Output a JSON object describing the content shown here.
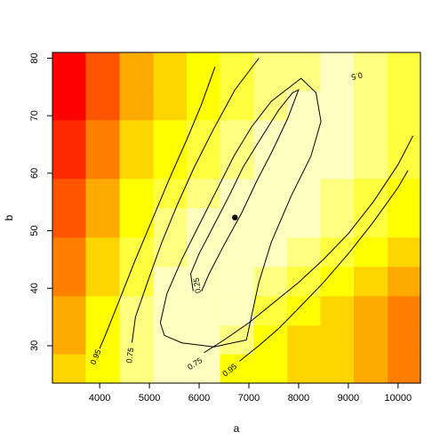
{
  "chart_data": {
    "type": "heatmap",
    "title": "",
    "xlabel": "a",
    "ylabel": "b",
    "xlim": [
      3050,
      10450
    ],
    "ylim": [
      23.5,
      81
    ],
    "x_ticks": [
      4000,
      5000,
      6000,
      7000,
      8000,
      9000,
      10000
    ],
    "y_ticks": [
      30,
      40,
      50,
      60,
      70,
      80
    ],
    "x_tick_labels": [
      "4000",
      "5000",
      "6000",
      "7000",
      "8000",
      "9000",
      "10000"
    ],
    "y_tick_labels": [
      "30",
      "40",
      "50",
      "60",
      "70",
      "80"
    ],
    "palette": [
      "#FF0000",
      "#FF2A00",
      "#FF5500",
      "#FF8000",
      "#FFAA00",
      "#FFD500",
      "#FFFF00",
      "#FFFF40",
      "#FFFF80",
      "#FFFFBF"
    ],
    "grid": {
      "x_edges": [
        3050,
        3720,
        4400,
        5080,
        5750,
        6420,
        7100,
        7770,
        8440,
        9110,
        9790,
        10450
      ],
      "y_edges": [
        23.5,
        28.6,
        33.6,
        38.7,
        43.8,
        48.9,
        54.0,
        59.1,
        64.2,
        69.3,
        74.4,
        81.0
      ],
      "z": [
        [
          5,
          6,
          8,
          9,
          9,
          6,
          6,
          5,
          5,
          4,
          3
        ],
        [
          4,
          6,
          8,
          9,
          9,
          8,
          6,
          5,
          5,
          4,
          3
        ],
        [
          4,
          6,
          8,
          9,
          9,
          9,
          7,
          6,
          5,
          4,
          3
        ],
        [
          3,
          5,
          7,
          9,
          9,
          9,
          8,
          7,
          6,
          5,
          4
        ],
        [
          3,
          5,
          7,
          8,
          9,
          9,
          9,
          8,
          7,
          6,
          5
        ],
        [
          2,
          4,
          6,
          8,
          9,
          9,
          9,
          9,
          8,
          7,
          6
        ],
        [
          2,
          4,
          6,
          7,
          8,
          9,
          9,
          9,
          8,
          7,
          6
        ],
        [
          1,
          3,
          5,
          6,
          7,
          8,
          9,
          9,
          9,
          8,
          7
        ],
        [
          1,
          3,
          5,
          6,
          7,
          8,
          9,
          9,
          9,
          8,
          7
        ],
        [
          0,
          2,
          4,
          5,
          6,
          7,
          8,
          9,
          9,
          8,
          7
        ],
        [
          0,
          2,
          4,
          5,
          6,
          7,
          8,
          8,
          9,
          8,
          7
        ]
      ]
    },
    "contours": [
      {
        "level": 0.25,
        "label": "0.25",
        "points": [
          [
            5880,
            39.5
          ],
          [
            5830,
            42.5
          ],
          [
            6000,
            46
          ],
          [
            6300,
            51
          ],
          [
            6600,
            56
          ],
          [
            6880,
            61
          ],
          [
            7200,
            65.5
          ],
          [
            7600,
            71
          ],
          [
            7880,
            74
          ],
          [
            8000,
            74.5
          ],
          [
            7780,
            69.5
          ],
          [
            7480,
            64
          ],
          [
            7150,
            58.5
          ],
          [
            6850,
            53
          ],
          [
            6500,
            47.5
          ],
          [
            6200,
            42.5
          ],
          [
            6050,
            39.5
          ]
        ],
        "label_at": [
          5970,
          40.5
        ]
      },
      {
        "level": 0.5,
        "label": "0.5",
        "points": [
          [
            6950,
            31
          ],
          [
            6300,
            29.8
          ],
          [
            5650,
            30.5
          ],
          [
            5300,
            31.8
          ],
          [
            5220,
            34
          ],
          [
            5350,
            39
          ],
          [
            5650,
            45
          ],
          [
            6000,
            51
          ],
          [
            6350,
            57
          ],
          [
            6700,
            63
          ],
          [
            7050,
            68
          ],
          [
            7450,
            72.5
          ],
          [
            8050,
            76.5
          ],
          [
            8350,
            74
          ],
          [
            8450,
            69
          ],
          [
            8250,
            63
          ],
          [
            7850,
            56
          ],
          [
            7450,
            48
          ],
          [
            7200,
            41
          ],
          [
            7050,
            35
          ],
          [
            6950,
            31
          ]
        ],
        "label_at": [
          9170,
          77
        ]
      },
      {
        "level": 0.75,
        "label": "0.75",
        "points": [
          [
            4650,
            30.5
          ],
          [
            4720,
            35
          ],
          [
            5000,
            42
          ],
          [
            5250,
            48
          ],
          [
            5560,
            54.5
          ],
          [
            5900,
            61
          ],
          [
            6280,
            67.5
          ],
          [
            6720,
            74.5
          ],
          [
            7200,
            80
          ]
        ],
        "label_at": [
          4620,
          28.3
        ]
      },
      {
        "level": 0.75,
        "label": "0.75",
        "points": [
          [
            6100,
            28.8
          ],
          [
            6500,
            31
          ],
          [
            7000,
            34
          ],
          [
            7500,
            37.5
          ],
          [
            8000,
            41
          ],
          [
            8500,
            45
          ],
          [
            9000,
            49.5
          ],
          [
            9500,
            55
          ],
          [
            10000,
            61.5
          ],
          [
            10300,
            66.5
          ]
        ],
        "label_at": [
          5920,
          26.8
        ]
      },
      {
        "level": 0.95,
        "label": "0.95",
        "points": [
          [
            4000,
            29.5
          ],
          [
            4100,
            31.5
          ],
          [
            4400,
            38
          ],
          [
            4720,
            45
          ],
          [
            5060,
            52
          ],
          [
            5400,
            59
          ],
          [
            5760,
            66
          ],
          [
            6050,
            72
          ],
          [
            6320,
            78.5
          ]
        ],
        "label_at": [
          3930,
          28
        ]
      },
      {
        "level": 0.95,
        "label": "0.95",
        "points": [
          [
            6810,
            27.3
          ],
          [
            7200,
            30
          ],
          [
            7600,
            33
          ],
          [
            8000,
            36.5
          ],
          [
            8500,
            41
          ],
          [
            9000,
            46
          ],
          [
            9500,
            51.5
          ],
          [
            10000,
            57.5
          ],
          [
            10200,
            60.5
          ]
        ],
        "label_at": [
          6620,
          25.7
        ]
      }
    ],
    "point": {
      "x": 6720,
      "y": 52.3
    }
  }
}
